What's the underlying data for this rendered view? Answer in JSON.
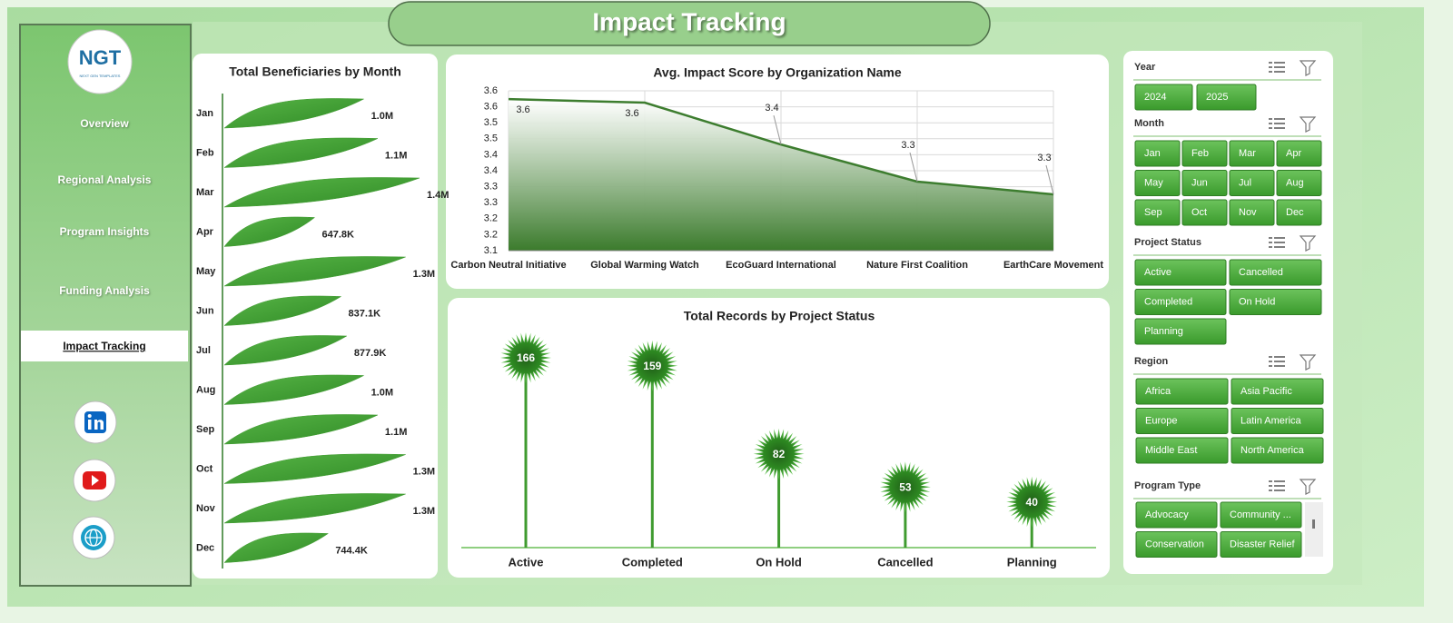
{
  "page": {
    "title": "Impact Tracking",
    "logo": {
      "text": "NGT",
      "tagline": "NEXT GEN TEMPLATES"
    },
    "nav": [
      "Overview",
      "Regional Analysis",
      "Program Insights",
      "Funding Analysis",
      "Impact Tracking"
    ]
  },
  "slicers": [
    {
      "title": "Year",
      "items": [
        "2024",
        "2025"
      ]
    },
    {
      "title": "Month",
      "items": [
        "Jan",
        "Feb",
        "Mar",
        "Apr",
        "May",
        "Jun",
        "Jul",
        "Aug",
        "Sep",
        "Oct",
        "Nov",
        "Dec"
      ]
    },
    {
      "title": "Project Status",
      "items": [
        "Active",
        "Cancelled",
        "Completed",
        "On Hold",
        "Planning"
      ]
    },
    {
      "title": "Region",
      "items": [
        "Africa",
        "Asia Pacific",
        "Europe",
        "Latin America",
        "Middle East",
        "North America"
      ]
    },
    {
      "title": "Program Type",
      "items": [
        "Advocacy",
        "Community ...",
        "Conservation",
        "Disaster Relief"
      ]
    }
  ],
  "chart_data": [
    {
      "type": "bar",
      "orientation": "horizontal",
      "title": "Total Beneficiaries by Month",
      "color": "#3f9b2f",
      "categories": [
        "Jan",
        "Feb",
        "Mar",
        "Apr",
        "May",
        "Jun",
        "Jul",
        "Aug",
        "Sep",
        "Oct",
        "Nov",
        "Dec"
      ],
      "values": [
        1000000,
        1100000,
        1400000,
        647800,
        1300000,
        837100,
        877900,
        1000000,
        1100000,
        1300000,
        1300000,
        744400
      ],
      "value_labels": [
        "1.0M",
        "1.1M",
        "1.4M",
        "647.8K",
        "1.3M",
        "837.1K",
        "877.9K",
        "1.0M",
        "1.1M",
        "1.3M",
        "1.3M",
        "744.4K"
      ]
    },
    {
      "type": "area",
      "title": "Avg. Impact Score by Organization Name",
      "color": "#3d7d2f",
      "grid": true,
      "categories": [
        "Carbon Neutral Initiative",
        "Global Warming Watch",
        "EcoGuard International",
        "Nature First Coalition",
        "EarthCare Movement"
      ],
      "values": [
        3.574,
        3.563,
        3.432,
        3.316,
        3.276
      ],
      "value_labels": [
        "3.6",
        "3.6",
        "3.4",
        "3.3",
        "3.3"
      ],
      "ylim": [
        3.1,
        3.6
      ],
      "yticks": [
        3.1,
        {
          "value": 3.15,
          "label": "3.2"
        },
        3.2,
        {
          "value": 3.25,
          "label": "3.3"
        },
        3.3,
        {
          "value": 3.35,
          "label": "3.4"
        },
        3.4,
        {
          "value": 3.45,
          "label": "3.5"
        },
        3.5,
        {
          "value": 3.55,
          "label": "3.6"
        },
        3.6
      ]
    },
    {
      "type": "lollipop",
      "title": "Total Records by Project Status",
      "color": "#3f9b2f",
      "categories": [
        "Active",
        "Completed",
        "On Hold",
        "Cancelled",
        "Planning"
      ],
      "values": [
        166,
        159,
        82,
        53,
        40
      ]
    }
  ]
}
